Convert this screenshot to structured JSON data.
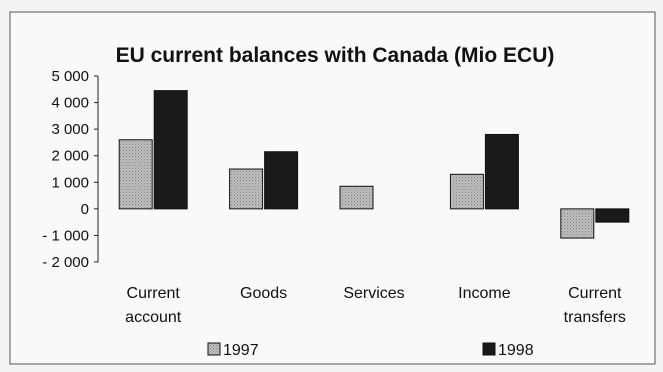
{
  "chart_data": {
    "type": "bar",
    "title": "EU current balances with Canada (Mio ECU)",
    "categories": [
      "Current account",
      "Goods",
      "Services",
      "Income",
      "Current transfers"
    ],
    "category_label_lines": [
      [
        "Current",
        "account"
      ],
      [
        "Goods"
      ],
      [
        "Services"
      ],
      [
        "Income"
      ],
      [
        "Current",
        "transfers"
      ]
    ],
    "series": [
      {
        "name": "1997",
        "values": [
          2600,
          1500,
          850,
          1300,
          -1100
        ],
        "color": "#b4b4b4",
        "pattern": "dotted"
      },
      {
        "name": "1998",
        "values": [
          4450,
          2150,
          null,
          2800,
          -500
        ],
        "color": "#1a1a1a",
        "pattern": "solid"
      }
    ],
    "ylim": [
      -2000,
      5000
    ],
    "yticks": [
      5000,
      4000,
      3000,
      2000,
      1000,
      0,
      -1000,
      -2000
    ],
    "ytick_labels": [
      "5 000",
      "4 000",
      "3 000",
      "2 000",
      "1 000",
      "0",
      "- 1 000",
      "- 2 000"
    ],
    "xlabel": "",
    "ylabel": "",
    "grid": false,
    "legend_position": "bottom"
  }
}
